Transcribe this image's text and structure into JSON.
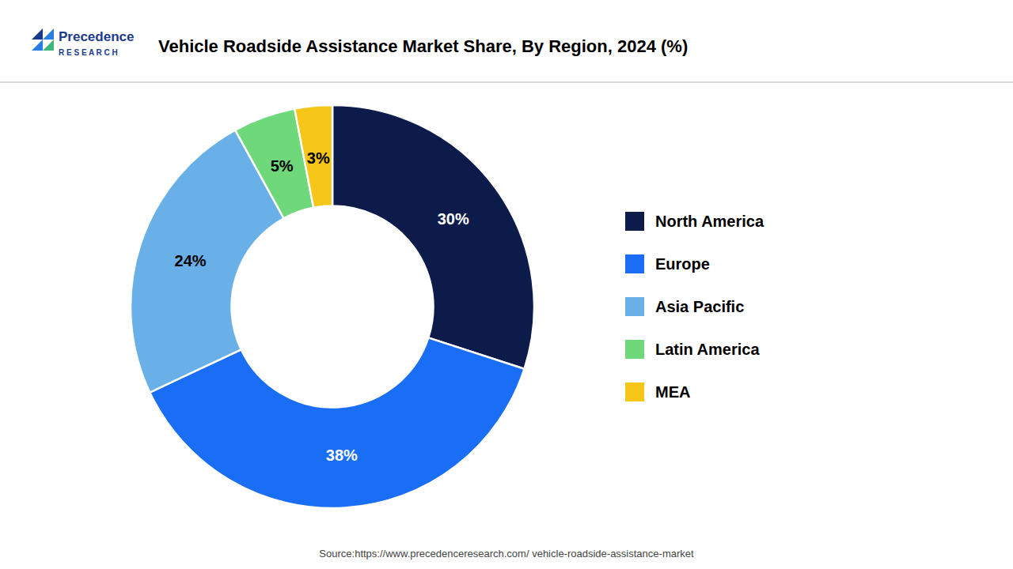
{
  "chart_data": {
    "type": "donut",
    "title": "Vehicle Roadside Assistance Market Share, By Region, 2024 (%)",
    "categories": [
      "North America",
      "Europe",
      "Asia Pacific",
      "Latin America",
      "MEA"
    ],
    "values": [
      30,
      38,
      24,
      5,
      3
    ],
    "value_labels": [
      "30%",
      "38%",
      "24%",
      "5%",
      "3%"
    ],
    "colors": [
      "#0d1b4b",
      "#1a6ef5",
      "#6ab0e8",
      "#6ed87a",
      "#f5c518"
    ],
    "data_labels": true,
    "legend": "right",
    "annotations": [
      "Precedence",
      "R E S E A R C H",
      "Source:https://www.precedenceresearch.com/ vehicle-roadside-assistance-market"
    ]
  }
}
